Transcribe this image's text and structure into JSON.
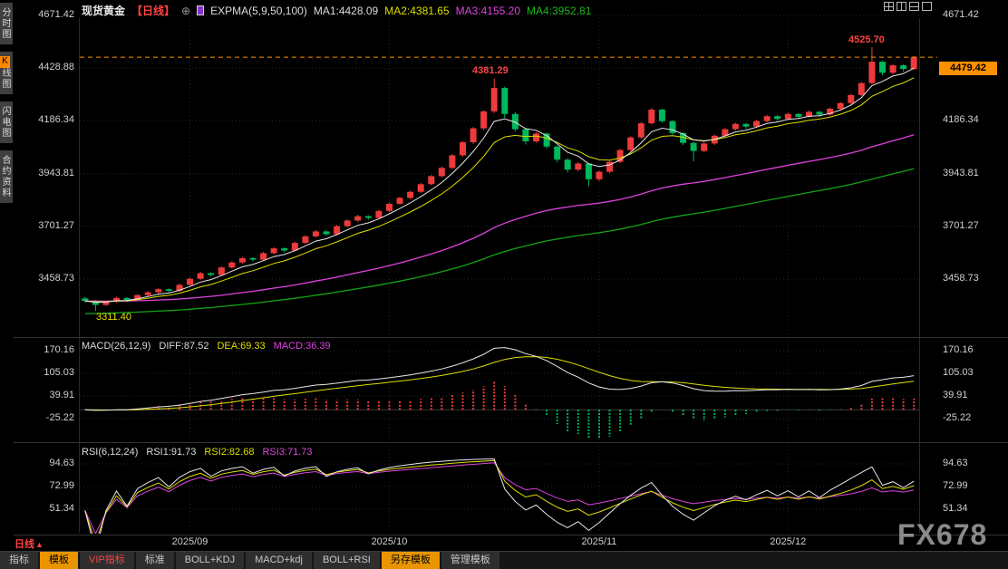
{
  "header": {
    "symbol": "现货黄金",
    "period_tag": "【日线】",
    "plus_icon": "⊕",
    "indicator_title": "EXPMA(5,9,50,100)",
    "ma1": "MA1:4428.09",
    "ma2": "MA2:4381.65",
    "ma3": "MA3:4155.20",
    "ma4": "MA4:3952.81",
    "window_icons": [
      "layout-quad-icon",
      "layout-two-vertical-icon",
      "layout-two-horizontal-icon",
      "layout-single-icon"
    ]
  },
  "sidebar": {
    "items": [
      {
        "label": "分时图",
        "name": "time-share-chart",
        "active": false
      },
      {
        "label": "K线图",
        "name": "kline-chart",
        "active": true
      },
      {
        "label": "闪电图",
        "name": "lightning-chart",
        "active": false
      },
      {
        "label": "合约资料",
        "name": "contract-info",
        "active": false
      }
    ]
  },
  "main_chart": {
    "y_axis_left": [
      "4671.42",
      "4428.88",
      "4186.34",
      "3943.81",
      "3701.27",
      "3458.73"
    ],
    "y_axis_right": [
      "4671.42",
      "4186.34",
      "3943.81",
      "3701.27",
      "3458.73"
    ],
    "current_price": "4479.42",
    "annotations": {
      "october_high": "4381.29",
      "latest_high": "4525.70",
      "start_low": "3311.40"
    }
  },
  "macd_panel": {
    "title": "MACD(26,12,9)",
    "diff": "DIFF:87.52",
    "dea": "DEA:69.33",
    "macd": "MACD:36.39",
    "y_axis": [
      "170.16",
      "105.03",
      "39.91",
      "-25.22"
    ]
  },
  "rsi_panel": {
    "title": "RSI(6,12,24)",
    "rsi1": "RSI1:91.73",
    "rsi2": "RSI2:82.68",
    "rsi3": "RSI3:71.73",
    "y_axis": [
      "94.63",
      "72.99",
      "51.34"
    ]
  },
  "x_axis": {
    "period_label": "日线",
    "period_arrow": "▲",
    "dates": [
      "2025/09",
      "2025/10",
      "2025/11",
      "2025/12"
    ]
  },
  "toolbar": {
    "tabs": [
      {
        "label": "指标",
        "name": "indicators",
        "style": "normal"
      },
      {
        "label": "模板",
        "name": "templates",
        "style": "active"
      },
      {
        "label": "VIP指标",
        "name": "vip-indicators",
        "style": "vip"
      },
      {
        "label": "标准",
        "name": "standard",
        "style": "normal"
      },
      {
        "label": "BOLL+KDJ",
        "name": "boll-kdj",
        "style": "normal"
      },
      {
        "label": "MACD+kdj",
        "name": "macd-kdj",
        "style": "normal"
      },
      {
        "label": "BOLL+RSI",
        "name": "boll-rsi",
        "style": "normal"
      },
      {
        "label": "另存模板",
        "name": "save-template",
        "style": "active"
      },
      {
        "label": "管理模板",
        "name": "manage-template",
        "style": "normal"
      }
    ]
  },
  "watermark": "FX678",
  "colors": {
    "up": "#ee3a3a",
    "down": "#00b85c",
    "ma1": "#e8e8e8",
    "ma2": "#dede00",
    "ma3": "#dd44dd",
    "ma4": "#15a215",
    "macd_diff": "#e8e8e8",
    "macd_dea": "#dede00",
    "rsi1": "#e8e8e8",
    "rsi2": "#dede00",
    "rsi3": "#dd44dd",
    "current_price_line": "#ff9000",
    "tag_bg": "#ff9000",
    "selected_tab_bg": "#e89500",
    "vip_text": "#ff4343",
    "annotation_high": "#ff4545",
    "annotation_low": "#e3e300"
  },
  "chart_data": {
    "type": "candlestick",
    "symbol": "现货黄金",
    "period": "日线",
    "price_axis": [
      4671.42,
      4428.88,
      4186.34,
      3943.81,
      3701.27,
      3458.73
    ],
    "current_price": 4479.42,
    "expma": {
      "periods": [
        5,
        9,
        50,
        100
      ],
      "values": [
        4428.09,
        4381.65,
        4155.2,
        3952.81
      ]
    },
    "macd": {
      "params": [
        26,
        12,
        9
      ],
      "diff": 87.52,
      "dea": 69.33,
      "macd": 36.39,
      "axis": [
        170.16,
        105.03,
        39.91,
        -25.22
      ]
    },
    "rsi": {
      "params": [
        6,
        12,
        24
      ],
      "values": [
        91.73,
        82.68,
        71.73
      ],
      "axis": [
        94.63,
        72.99,
        51.34
      ]
    },
    "annotated_points": [
      {
        "index": 1,
        "price": 3311.4,
        "type": "low"
      },
      {
        "index": 39,
        "price": 4381.29,
        "type": "high"
      },
      {
        "index": 75,
        "price": 4525.7,
        "type": "high"
      }
    ],
    "month_tick_indices": [
      10,
      29,
      49,
      67
    ],
    "candles": [
      [
        3370,
        3378,
        3352,
        3358
      ],
      [
        3358,
        3362,
        3311.4,
        3340
      ],
      [
        3340,
        3360,
        3334,
        3355
      ],
      [
        3355,
        3378,
        3350,
        3372
      ],
      [
        3372,
        3376,
        3354,
        3362
      ],
      [
        3362,
        3390,
        3358,
        3385
      ],
      [
        3385,
        3404,
        3380,
        3398
      ],
      [
        3398,
        3418,
        3392,
        3412
      ],
      [
        3412,
        3416,
        3398,
        3405
      ],
      [
        3405,
        3438,
        3400,
        3432
      ],
      [
        3432,
        3466,
        3428,
        3460
      ],
      [
        3460,
        3492,
        3455,
        3486
      ],
      [
        3486,
        3490,
        3470,
        3478
      ],
      [
        3478,
        3518,
        3474,
        3512
      ],
      [
        3512,
        3541,
        3506,
        3535
      ],
      [
        3535,
        3561,
        3530,
        3555
      ],
      [
        3555,
        3560,
        3540,
        3548
      ],
      [
        3548,
        3584,
        3544,
        3578
      ],
      [
        3578,
        3606,
        3572,
        3600
      ],
      [
        3600,
        3604,
        3582,
        3590
      ],
      [
        3590,
        3631,
        3586,
        3625
      ],
      [
        3625,
        3661,
        3620,
        3655
      ],
      [
        3655,
        3684,
        3650,
        3678
      ],
      [
        3678,
        3682,
        3658,
        3665
      ],
      [
        3665,
        3708,
        3660,
        3702
      ],
      [
        3702,
        3734,
        3696,
        3728
      ],
      [
        3728,
        3754,
        3722,
        3748
      ],
      [
        3748,
        3752,
        3732,
        3740
      ],
      [
        3740,
        3778,
        3735,
        3772
      ],
      [
        3772,
        3811,
        3766,
        3805
      ],
      [
        3805,
        3838,
        3800,
        3832
      ],
      [
        3832,
        3866,
        3826,
        3860
      ],
      [
        3860,
        3901,
        3854,
        3895
      ],
      [
        3895,
        3938,
        3890,
        3932
      ],
      [
        3932,
        3976,
        3926,
        3970
      ],
      [
        3970,
        4034,
        3964,
        4028
      ],
      [
        4028,
        4094,
        4022,
        4088
      ],
      [
        4088,
        4158,
        4080,
        4152
      ],
      [
        4152,
        4236,
        4144,
        4230
      ],
      [
        4230,
        4381.29,
        4222,
        4338
      ],
      [
        4338,
        4344,
        4200,
        4218
      ],
      [
        4218,
        4226,
        4138,
        4148
      ],
      [
        4148,
        4154,
        4078,
        4092
      ],
      [
        4092,
        4134,
        4086,
        4128
      ],
      [
        4128,
        4132,
        4058,
        4068
      ],
      [
        4068,
        4074,
        3996,
        4008
      ],
      [
        4008,
        4014,
        3950,
        3962
      ],
      [
        3962,
        3996,
        3955,
        3990
      ],
      [
        3990,
        3994,
        3886,
        3918
      ],
      [
        3918,
        3958,
        3910,
        3952
      ],
      [
        3952,
        4004,
        3946,
        3998
      ],
      [
        3998,
        4058,
        3992,
        4052
      ],
      [
        4052,
        4116,
        4046,
        4110
      ],
      [
        4110,
        4181,
        4104,
        4175
      ],
      [
        4175,
        4246,
        4170,
        4238
      ],
      [
        4238,
        4242,
        4178,
        4185
      ],
      [
        4185,
        4190,
        4122,
        4130
      ],
      [
        4130,
        4136,
        4076,
        4085
      ],
      [
        4085,
        4090,
        4000,
        4048
      ],
      [
        4048,
        4088,
        4042,
        4082
      ],
      [
        4082,
        4124,
        4076,
        4118
      ],
      [
        4118,
        4154,
        4112,
        4148
      ],
      [
        4148,
        4178,
        4142,
        4172
      ],
      [
        4172,
        4176,
        4150,
        4160
      ],
      [
        4160,
        4191,
        4154,
        4185
      ],
      [
        4185,
        4214,
        4180,
        4208
      ],
      [
        4208,
        4212,
        4186,
        4195
      ],
      [
        4195,
        4224,
        4190,
        4218
      ],
      [
        4218,
        4222,
        4196,
        4205
      ],
      [
        4205,
        4234,
        4200,
        4228
      ],
      [
        4228,
        4232,
        4206,
        4215
      ],
      [
        4215,
        4248,
        4210,
        4242
      ],
      [
        4242,
        4274,
        4236,
        4268
      ],
      [
        4268,
        4311,
        4262,
        4305
      ],
      [
        4305,
        4366,
        4300,
        4360
      ],
      [
        4360,
        4525.7,
        4355,
        4458
      ],
      [
        4458,
        4462,
        4396,
        4408
      ],
      [
        4408,
        4448,
        4400,
        4442
      ],
      [
        4442,
        4446,
        4412,
        4425
      ],
      [
        4425,
        4484,
        4420,
        4479.42
      ]
    ]
  }
}
